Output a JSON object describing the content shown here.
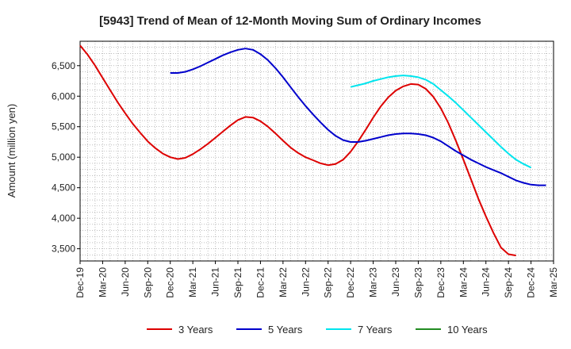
{
  "chart_data": {
    "type": "line",
    "title": "[5943]  Trend of Mean of 12-Month Moving Sum of Ordinary Incomes",
    "xlabel": "",
    "ylabel": "Amount (million yen)",
    "ylim": [
      3300,
      6900
    ],
    "yticks": [
      3500,
      4000,
      4500,
      5000,
      5500,
      6000,
      6500
    ],
    "ytick_labels": [
      "3,500",
      "4,000",
      "4,500",
      "5,000",
      "5,500",
      "6,000",
      "6,500"
    ],
    "xtick_labels": [
      "Dec-19",
      "Mar-20",
      "Jun-20",
      "Sep-20",
      "Dec-20",
      "Mar-21",
      "Jun-21",
      "Sep-21",
      "Dec-21",
      "Mar-22",
      "Jun-22",
      "Sep-22",
      "Dec-22",
      "Mar-23",
      "Jun-23",
      "Sep-23",
      "Dec-23",
      "Mar-24",
      "Jun-24",
      "Sep-24",
      "Dec-24",
      "Mar-25"
    ],
    "x_start": "Dec-19",
    "x_months": 63,
    "grid": true,
    "legend_position": "bottom",
    "series": [
      {
        "name": "3 Years",
        "color": "#dd0000",
        "start_month_index": 0,
        "values": [
          6830,
          6680,
          6500,
          6300,
          6100,
          5900,
          5720,
          5550,
          5400,
          5260,
          5150,
          5060,
          5000,
          4970,
          4990,
          5050,
          5130,
          5220,
          5320,
          5420,
          5520,
          5610,
          5660,
          5650,
          5590,
          5500,
          5390,
          5270,
          5160,
          5070,
          5000,
          4950,
          4900,
          4870,
          4890,
          4960,
          5090,
          5260,
          5450,
          5650,
          5830,
          5980,
          6090,
          6160,
          6200,
          6190,
          6120,
          5990,
          5800,
          5560,
          5270,
          4960,
          4640,
          4320,
          4030,
          3760,
          3520,
          3410,
          3390
        ]
      },
      {
        "name": "5 Years",
        "color": "#0000cc",
        "start_month_index": 12,
        "values": [
          6380,
          6380,
          6400,
          6440,
          6490,
          6550,
          6610,
          6670,
          6720,
          6760,
          6780,
          6760,
          6690,
          6590,
          6460,
          6310,
          6150,
          5990,
          5840,
          5700,
          5570,
          5450,
          5350,
          5280,
          5250,
          5250,
          5270,
          5300,
          5330,
          5360,
          5380,
          5390,
          5390,
          5380,
          5360,
          5320,
          5260,
          5180,
          5100,
          5030,
          4960,
          4900,
          4840,
          4790,
          4740,
          4680,
          4620,
          4580,
          4550,
          4540,
          4540
        ]
      },
      {
        "name": "7 Years",
        "color": "#00e5ee",
        "start_month_index": 36,
        "values": [
          6150,
          6180,
          6210,
          6250,
          6280,
          6310,
          6330,
          6340,
          6330,
          6310,
          6270,
          6200,
          6100,
          6000,
          5890,
          5770,
          5650,
          5530,
          5410,
          5290,
          5170,
          5060,
          4960,
          4890,
          4830
        ]
      },
      {
        "name": "10 Years",
        "color": "#228b22",
        "start_month_index": 0,
        "values": []
      }
    ]
  }
}
